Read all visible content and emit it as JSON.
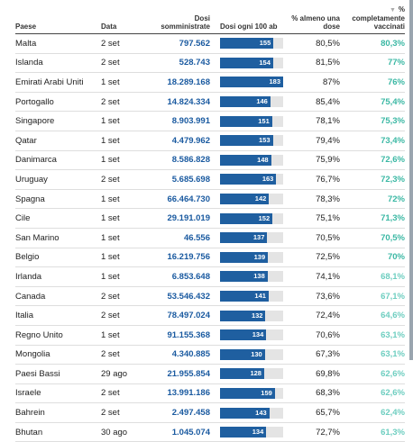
{
  "headers": {
    "country": "Paese",
    "date": "Data",
    "doses": "Dosi somministrate",
    "per100": "Dosi ogni 100 ab",
    "first": "% almeno una dose",
    "full": "% completamente vaccinati"
  },
  "sort_icon": "▼",
  "bar_scale_max": 183,
  "colors": {
    "bar": "#1f5fa0",
    "bar_track": "#e4e4e4",
    "doses_text": "#1a5aa0",
    "full_high": "#3bb8a4",
    "full_low": "#6ecec0"
  },
  "rows": [
    {
      "country": "Malta",
      "date": "2 set",
      "doses": "797.562",
      "per100": 155,
      "first": "80,5%",
      "full": "80,3%"
    },
    {
      "country": "Islanda",
      "date": "2 set",
      "doses": "528.743",
      "per100": 154,
      "first": "81,5%",
      "full": "77%"
    },
    {
      "country": "Emirati Arabi Uniti",
      "date": "1 set",
      "doses": "18.289.168",
      "per100": 183,
      "first": "87%",
      "full": "76%"
    },
    {
      "country": "Portogallo",
      "date": "2 set",
      "doses": "14.824.334",
      "per100": 146,
      "first": "85,4%",
      "full": "75,4%"
    },
    {
      "country": "Singapore",
      "date": "1 set",
      "doses": "8.903.991",
      "per100": 151,
      "first": "78,1%",
      "full": "75,3%"
    },
    {
      "country": "Qatar",
      "date": "1 set",
      "doses": "4.479.962",
      "per100": 153,
      "first": "79,4%",
      "full": "73,4%"
    },
    {
      "country": "Danimarca",
      "date": "1 set",
      "doses": "8.586.828",
      "per100": 148,
      "first": "75,9%",
      "full": "72,6%"
    },
    {
      "country": "Uruguay",
      "date": "2 set",
      "doses": "5.685.698",
      "per100": 163,
      "first": "76,7%",
      "full": "72,3%"
    },
    {
      "country": "Spagna",
      "date": "1 set",
      "doses": "66.464.730",
      "per100": 142,
      "first": "78,3%",
      "full": "72%"
    },
    {
      "country": "Cile",
      "date": "1 set",
      "doses": "29.191.019",
      "per100": 152,
      "first": "75,1%",
      "full": "71,3%"
    },
    {
      "country": "San Marino",
      "date": "1 set",
      "doses": "46.556",
      "per100": 137,
      "first": "70,5%",
      "full": "70,5%"
    },
    {
      "country": "Belgio",
      "date": "1 set",
      "doses": "16.219.756",
      "per100": 139,
      "first": "72,5%",
      "full": "70%"
    },
    {
      "country": "Irlanda",
      "date": "1 set",
      "doses": "6.853.648",
      "per100": 138,
      "first": "74,1%",
      "full": "68,1%"
    },
    {
      "country": "Canada",
      "date": "2 set",
      "doses": "53.546.432",
      "per100": 141,
      "first": "73,6%",
      "full": "67,1%"
    },
    {
      "country": "Italia",
      "date": "2 set",
      "doses": "78.497.024",
      "per100": 132,
      "first": "72,4%",
      "full": "64,6%"
    },
    {
      "country": "Regno Unito",
      "date": "1 set",
      "doses": "91.155.368",
      "per100": 134,
      "first": "70,6%",
      "full": "63,1%"
    },
    {
      "country": "Mongolia",
      "date": "2 set",
      "doses": "4.340.885",
      "per100": 130,
      "first": "67,3%",
      "full": "63,1%"
    },
    {
      "country": "Paesi Bassi",
      "date": "29 ago",
      "doses": "21.955.854",
      "per100": 128,
      "first": "69,8%",
      "full": "62,6%"
    },
    {
      "country": "Israele",
      "date": "2 set",
      "doses": "13.991.186",
      "per100": 159,
      "first": "68,3%",
      "full": "62,6%"
    },
    {
      "country": "Bahrein",
      "date": "2 set",
      "doses": "2.497.458",
      "per100": 143,
      "first": "65,7%",
      "full": "62,4%"
    },
    {
      "country": "Bhutan",
      "date": "30 ago",
      "doses": "1.045.074",
      "per100": 134,
      "first": "72,7%",
      "full": "61,3%"
    }
  ]
}
